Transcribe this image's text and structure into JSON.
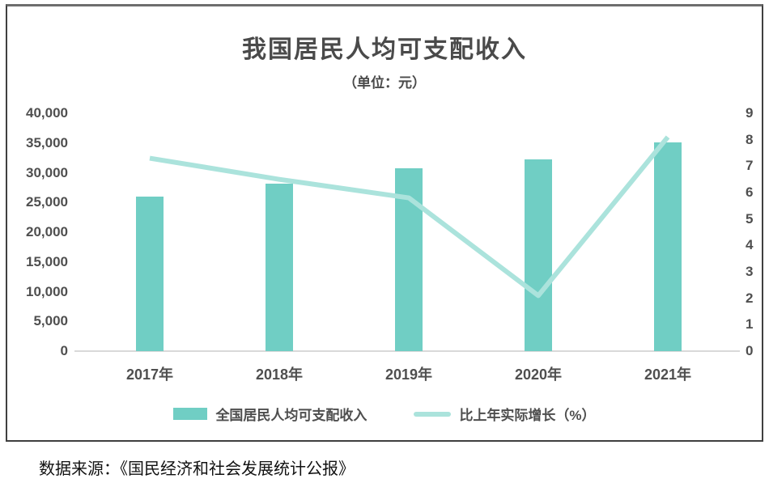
{
  "page": {
    "source_note": "数据来源：《国民经济和社会发展统计公报》"
  },
  "chart_data": {
    "type": "bar+line",
    "title": "我国居民人均可支配收入",
    "subtitle": "（单位：元）",
    "categories": [
      "2017年",
      "2018年",
      "2019年",
      "2020年",
      "2021年"
    ],
    "series": [
      {
        "name": "全国居民人均可支配收入",
        "type": "bar",
        "axis": "left",
        "values": [
          25974,
          28228,
          30733,
          32189,
          35128
        ],
        "color": "#70CEC4"
      },
      {
        "name": "比上年实际增长（%）",
        "type": "line",
        "axis": "right",
        "values": [
          7.3,
          6.5,
          5.8,
          2.1,
          8.1
        ],
        "color": "#ABE3DC"
      }
    ],
    "left_axis": {
      "min": 0,
      "max": 40000,
      "tick_labels": [
        "0",
        "5,000",
        "10,000",
        "15,000",
        "20,000",
        "25,000",
        "30,000",
        "35,000",
        "40,000"
      ]
    },
    "right_axis": {
      "min": 0,
      "max": 9,
      "tick_labels": [
        "0",
        "1",
        "2",
        "3",
        "4",
        "5",
        "6",
        "7",
        "8",
        "9"
      ]
    },
    "grid": false,
    "legend_position": "bottom"
  },
  "colors": {
    "bar": "#70CEC4",
    "line": "#ABE3DC",
    "frame_border": "#3F3F3F",
    "axis_line": "#D9D9D9",
    "text": "#4E4E4E"
  }
}
